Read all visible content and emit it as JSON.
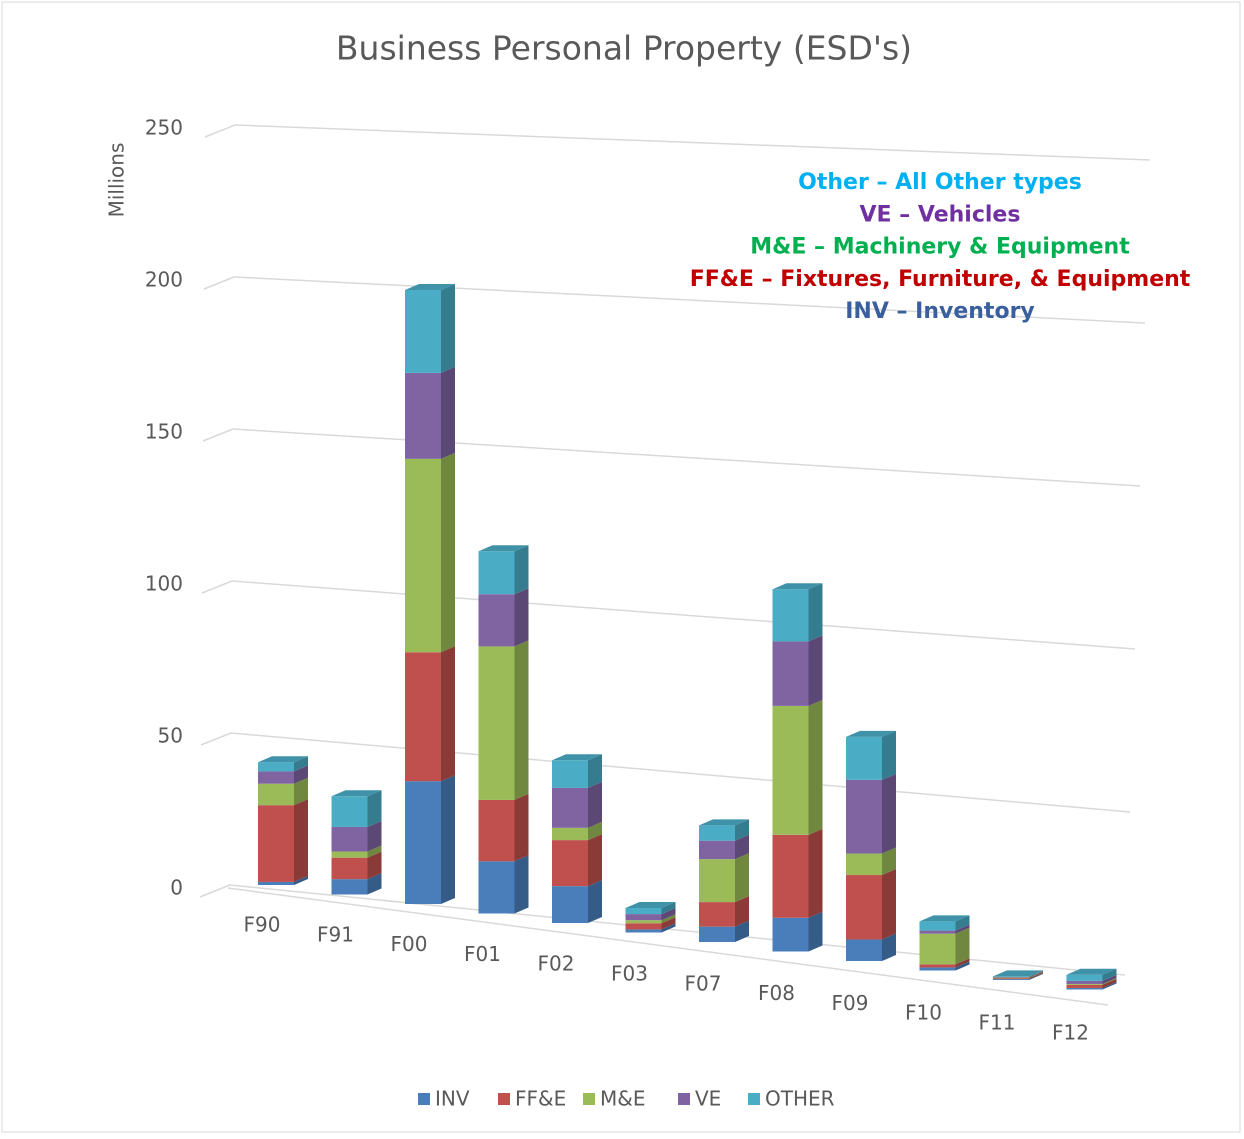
{
  "chart_data": {
    "type": "bar3d_stacked",
    "title": "Business Personal Property (ESD's)",
    "y_label": "Millions",
    "categories": [
      "F90",
      "F91",
      "F00",
      "F01",
      "F02",
      "F03",
      "F07",
      "F08",
      "F09",
      "F10",
      "F11",
      "F12"
    ],
    "series": [
      {
        "name": "INV",
        "color": "#4a7ebb",
        "values": [
          1,
          5,
          40,
          17,
          12,
          1,
          5,
          11,
          7,
          1,
          0.3,
          0.5
        ]
      },
      {
        "name": "FF&E",
        "color": "#c0504d",
        "values": [
          25,
          7,
          42,
          20,
          15,
          2,
          8,
          27,
          21,
          1,
          0.3,
          1
        ]
      },
      {
        "name": "M&E",
        "color": "#9bbb59",
        "values": [
          7,
          2,
          63,
          50,
          4,
          1,
          14,
          42,
          7,
          10,
          0.2,
          0.3
        ]
      },
      {
        "name": "VE",
        "color": "#8064a2",
        "values": [
          4,
          8,
          28,
          17,
          13,
          2,
          6,
          21,
          24,
          1,
          0.2,
          1
        ]
      },
      {
        "name": "OTHER",
        "color": "#4bacc6",
        "values": [
          3,
          10,
          27,
          14,
          9,
          2,
          5,
          17,
          14,
          3,
          0.2,
          2
        ]
      }
    ],
    "ylim": [
      0,
      250
    ],
    "yticks": [
      0,
      50,
      100,
      150,
      200,
      250
    ],
    "grid": true,
    "legend": "bottom",
    "annotations": [
      {
        "text": "Other – All Other types",
        "color": "#00b0f0"
      },
      {
        "text": "VE – Vehicles",
        "color": "#7030a0"
      },
      {
        "text": "M&E – Machinery & Equipment",
        "color": "#00b050"
      },
      {
        "text": "FF&E – Fixtures, Furniture, & Equipment",
        "color": "#c00000"
      },
      {
        "text": "INV – Inventory",
        "color": "#3a5f9e"
      }
    ]
  }
}
